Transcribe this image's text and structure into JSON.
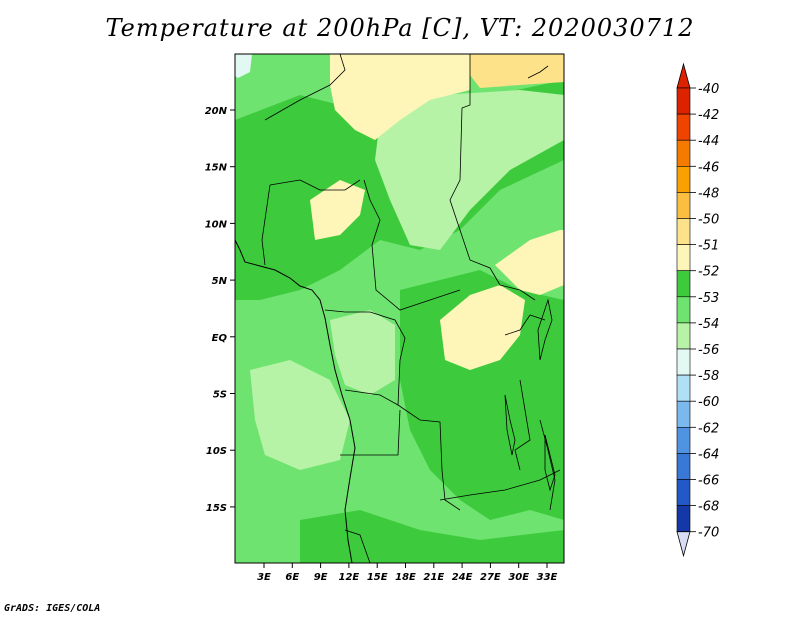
{
  "title": "Temperature at 200hPa [C], VT: 2020030712",
  "footer": "GrADS: IGES/COLA",
  "map": {
    "lat_labels": [
      "20N",
      "15N",
      "10N",
      "5N",
      "EQ",
      "5S",
      "10S",
      "15S"
    ],
    "lon_labels": [
      "3E",
      "6E",
      "9E",
      "12E",
      "15E",
      "18E",
      "21E",
      "24E",
      "27E",
      "30E",
      "33E"
    ]
  },
  "colorbar": {
    "levels": [
      {
        "label": "-40",
        "color": "#dd2200"
      },
      {
        "label": "-42",
        "color": "#ee4400"
      },
      {
        "label": "-44",
        "color": "#f57a00"
      },
      {
        "label": "-46",
        "color": "#faa000"
      },
      {
        "label": "-48",
        "color": "#fbbe40"
      },
      {
        "label": "-50",
        "color": "#fde28a"
      },
      {
        "label": "-51",
        "color": "#fef5b8"
      },
      {
        "label": "-52",
        "color": "#3dcb3d"
      },
      {
        "label": "-53",
        "color": "#6fe36f"
      },
      {
        "label": "-54",
        "color": "#b6f3a6"
      },
      {
        "label": "-56",
        "color": "#e2f8f2"
      },
      {
        "label": "-58",
        "color": "#b0e0f6"
      },
      {
        "label": "-60",
        "color": "#7ab8ee"
      },
      {
        "label": "-62",
        "color": "#4f94e3"
      },
      {
        "label": "-64",
        "color": "#3978d6"
      },
      {
        "label": "-66",
        "color": "#2358c7"
      },
      {
        "label": "-68",
        "color": "#1538a8"
      },
      {
        "label": "-70",
        "color": "#0a1678"
      }
    ],
    "top_arrow_color": "#dd2200",
    "bottom_arrow_color": "#d8dcf5"
  }
}
